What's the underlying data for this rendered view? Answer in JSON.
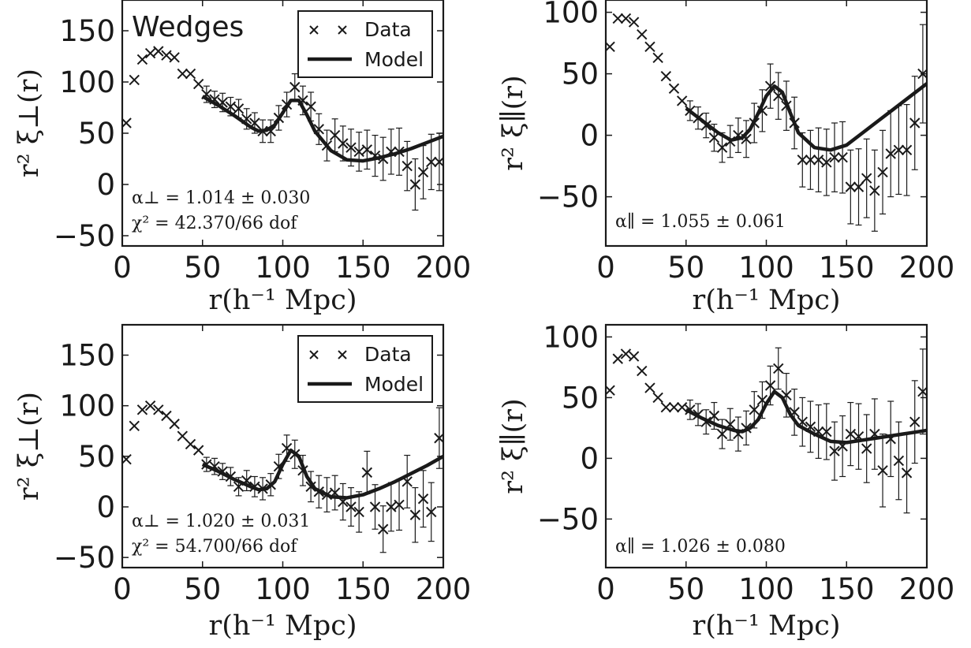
{
  "colors": {
    "ink": "#1a1a1a",
    "background": "#ffffff"
  },
  "chart_data": [
    {
      "type": "scatter",
      "panel_label": "Wedges",
      "xlabel": "r(h⁻¹ Mpc)",
      "ylabel": "r² ξ⊥(r)",
      "xlim": [
        0,
        200
      ],
      "ylim": [
        -60,
        180
      ],
      "xticks": [
        "0",
        "50",
        "100",
        "150",
        "200"
      ],
      "yticks": [
        "−50",
        "0",
        "50",
        "100",
        "150"
      ],
      "legend": {
        "placement": "top-right",
        "entries": [
          "Data",
          "Model"
        ]
      },
      "annotations": [
        "α⊥ = 1.014 ± 0.030",
        "χ² = 42.370/66 dof"
      ],
      "series": [
        {
          "name": "Data",
          "marker": "x",
          "x": [
            2.5,
            7.5,
            12.5,
            17.5,
            22.5,
            27.5,
            32.5,
            37.5,
            42.5,
            47.5,
            52.5,
            57.5,
            62.5,
            67.5,
            72.5,
            77.5,
            82.5,
            87.5,
            92.5,
            97.5,
            102.5,
            107.5,
            112.5,
            117.5,
            122.5,
            127.5,
            132.5,
            137.5,
            142.5,
            147.5,
            152.5,
            157.5,
            162.5,
            167.5,
            172.5,
            177.5,
            182.5,
            187.5,
            192.5,
            197.5
          ],
          "y": [
            60,
            102,
            122,
            128,
            130,
            126,
            124,
            108,
            108,
            98,
            88,
            83,
            80,
            76,
            74,
            64,
            60,
            52,
            52,
            65,
            78,
            95,
            82,
            76,
            54,
            38,
            48,
            40,
            36,
            32,
            34,
            28,
            25,
            32,
            32,
            18,
            0,
            12,
            22,
            22
          ],
          "yerr": [
            0,
            0,
            0,
            0,
            0,
            0,
            0,
            0,
            0,
            0,
            8,
            8,
            9,
            9,
            9,
            10,
            10,
            11,
            11,
            12,
            12,
            13,
            14,
            14,
            15,
            15,
            16,
            17,
            18,
            19,
            19,
            20,
            21,
            22,
            23,
            24,
            25,
            26,
            27,
            28
          ]
        },
        {
          "name": "Model",
          "style": "line",
          "x": [
            50,
            60,
            70,
            80,
            85,
            90,
            95,
            100,
            105,
            110,
            115,
            120,
            130,
            140,
            150,
            160,
            170,
            180,
            190,
            200
          ],
          "y": [
            86,
            77,
            67,
            56,
            52,
            53,
            58,
            70,
            82,
            82,
            68,
            52,
            33,
            24,
            23,
            26,
            30,
            35,
            41,
            47
          ]
        }
      ]
    },
    {
      "type": "scatter",
      "xlabel": "r(h⁻¹ Mpc)",
      "ylabel": "r² ξ∥(r)",
      "xlim": [
        0,
        200
      ],
      "ylim": [
        -90,
        110
      ],
      "xticks": [
        "0",
        "50",
        "100",
        "150",
        "200"
      ],
      "yticks": [
        "−50",
        "0",
        "50",
        "100"
      ],
      "annotations": [
        "α∥ = 1.055 ± 0.061"
      ],
      "series": [
        {
          "name": "Data",
          "marker": "x",
          "x": [
            2.5,
            7.5,
            12.5,
            17.5,
            22.5,
            27.5,
            32.5,
            37.5,
            42.5,
            47.5,
            52.5,
            57.5,
            62.5,
            67.5,
            72.5,
            77.5,
            82.5,
            87.5,
            92.5,
            97.5,
            102.5,
            107.5,
            112.5,
            117.5,
            122.5,
            127.5,
            132.5,
            137.5,
            142.5,
            147.5,
            152.5,
            157.5,
            162.5,
            167.5,
            172.5,
            177.5,
            182.5,
            187.5,
            192.5,
            197.5
          ],
          "y": [
            72,
            95,
            95,
            92,
            82,
            72,
            63,
            48,
            38,
            28,
            20,
            14,
            8,
            -2,
            -10,
            -5,
            0,
            -3,
            10,
            20,
            40,
            32,
            24,
            10,
            -20,
            -20,
            -20,
            -22,
            -18,
            -18,
            -42,
            -42,
            -35,
            -45,
            -30,
            -15,
            -12,
            -12,
            10,
            50
          ],
          "yerr": [
            0,
            0,
            0,
            0,
            0,
            0,
            0,
            0,
            0,
            0,
            8,
            9,
            10,
            11,
            12,
            13,
            14,
            15,
            16,
            17,
            18,
            19,
            20,
            21,
            22,
            24,
            26,
            27,
            28,
            29,
            30,
            31,
            32,
            33,
            34,
            35,
            36,
            37,
            38,
            40
          ]
        },
        {
          "name": "Model",
          "style": "line",
          "x": [
            50,
            60,
            70,
            78,
            85,
            90,
            95,
            100,
            105,
            110,
            115,
            120,
            130,
            140,
            150,
            160,
            170,
            180,
            190,
            200
          ],
          "y": [
            22,
            12,
            2,
            -4,
            -2,
            5,
            18,
            32,
            40,
            35,
            18,
            2,
            -10,
            -12,
            -8,
            2,
            12,
            22,
            32,
            42
          ]
        }
      ]
    },
    {
      "type": "scatter",
      "xlabel": "r(h⁻¹ Mpc)",
      "ylabel": "r² ξ⊥(r)",
      "xlim": [
        0,
        200
      ],
      "ylim": [
        -60,
        180
      ],
      "xticks": [
        "0",
        "50",
        "100",
        "150",
        "200"
      ],
      "yticks": [
        "−50",
        "0",
        "50",
        "100",
        "150"
      ],
      "legend": {
        "placement": "top-right",
        "entries": [
          "Data",
          "Model"
        ]
      },
      "annotations": [
        "α⊥ = 1.020 ± 0.031",
        "χ² = 54.700/66 dof"
      ],
      "series": [
        {
          "name": "Data",
          "marker": "x",
          "x": [
            2.5,
            7.5,
            12.5,
            17.5,
            22.5,
            27.5,
            32.5,
            37.5,
            42.5,
            47.5,
            52.5,
            57.5,
            62.5,
            67.5,
            72.5,
            77.5,
            82.5,
            87.5,
            92.5,
            97.5,
            102.5,
            107.5,
            112.5,
            117.5,
            122.5,
            127.5,
            132.5,
            137.5,
            142.5,
            147.5,
            152.5,
            157.5,
            162.5,
            167.5,
            172.5,
            177.5,
            182.5,
            187.5,
            192.5,
            197.5
          ],
          "y": [
            47,
            80,
            96,
            100,
            96,
            90,
            82,
            70,
            62,
            56,
            42,
            40,
            35,
            30,
            20,
            26,
            20,
            18,
            22,
            40,
            58,
            52,
            36,
            20,
            15,
            12,
            14,
            5,
            0,
            -5,
            34,
            0,
            -22,
            0,
            2,
            25,
            -8,
            8,
            -5,
            68
          ],
          "yerr": [
            0,
            0,
            0,
            0,
            0,
            0,
            0,
            0,
            0,
            0,
            7,
            8,
            8,
            9,
            9,
            10,
            10,
            11,
            11,
            12,
            13,
            14,
            15,
            15,
            16,
            17,
            17,
            18,
            19,
            20,
            21,
            22,
            23,
            24,
            25,
            26,
            27,
            28,
            29,
            30
          ]
        },
        {
          "name": "Model",
          "style": "line",
          "x": [
            50,
            60,
            70,
            80,
            85,
            90,
            95,
            100,
            105,
            110,
            115,
            120,
            130,
            140,
            150,
            160,
            170,
            180,
            190,
            200
          ],
          "y": [
            42,
            35,
            27,
            20,
            17,
            18,
            25,
            42,
            56,
            50,
            30,
            18,
            10,
            9,
            12,
            18,
            25,
            33,
            41,
            50
          ]
        }
      ]
    },
    {
      "type": "scatter",
      "xlabel": "r(h⁻¹ Mpc)",
      "ylabel": "r² ξ∥(r)",
      "xlim": [
        0,
        200
      ],
      "ylim": [
        -90,
        110
      ],
      "xticks": [
        "0",
        "50",
        "100",
        "150",
        "200"
      ],
      "yticks": [
        "−50",
        "0",
        "50",
        "100"
      ],
      "annotations": [
        "α∥ = 1.026 ± 0.080"
      ],
      "series": [
        {
          "name": "Data",
          "marker": "x",
          "x": [
            2.5,
            7.5,
            12.5,
            17.5,
            22.5,
            27.5,
            32.5,
            37.5,
            42.5,
            47.5,
            52.5,
            57.5,
            62.5,
            67.5,
            72.5,
            77.5,
            82.5,
            87.5,
            92.5,
            97.5,
            102.5,
            107.5,
            112.5,
            117.5,
            122.5,
            127.5,
            132.5,
            137.5,
            142.5,
            147.5,
            152.5,
            157.5,
            162.5,
            167.5,
            172.5,
            177.5,
            182.5,
            187.5,
            192.5,
            197.5
          ],
          "y": [
            56,
            82,
            86,
            84,
            72,
            58,
            50,
            42,
            42,
            42,
            40,
            36,
            30,
            35,
            20,
            28,
            20,
            25,
            40,
            48,
            60,
            74,
            52,
            38,
            30,
            26,
            22,
            22,
            6,
            10,
            20,
            18,
            8,
            20,
            -10,
            16,
            -2,
            -12,
            30,
            55
          ],
          "yerr": [
            0,
            0,
            0,
            0,
            0,
            0,
            0,
            0,
            0,
            0,
            8,
            9,
            10,
            11,
            12,
            13,
            14,
            14,
            15,
            15,
            16,
            17,
            18,
            19,
            20,
            21,
            22,
            23,
            24,
            25,
            26,
            27,
            28,
            29,
            30,
            31,
            32,
            33,
            34,
            35
          ]
        },
        {
          "name": "Model",
          "style": "line",
          "x": [
            50,
            60,
            70,
            80,
            85,
            90,
            95,
            100,
            105,
            110,
            115,
            120,
            130,
            140,
            150,
            160,
            170,
            180,
            190,
            200
          ],
          "y": [
            40,
            33,
            27,
            23,
            22,
            25,
            32,
            45,
            55,
            50,
            36,
            27,
            20,
            14,
            13,
            15,
            17,
            19,
            21,
            23
          ]
        }
      ]
    }
  ]
}
